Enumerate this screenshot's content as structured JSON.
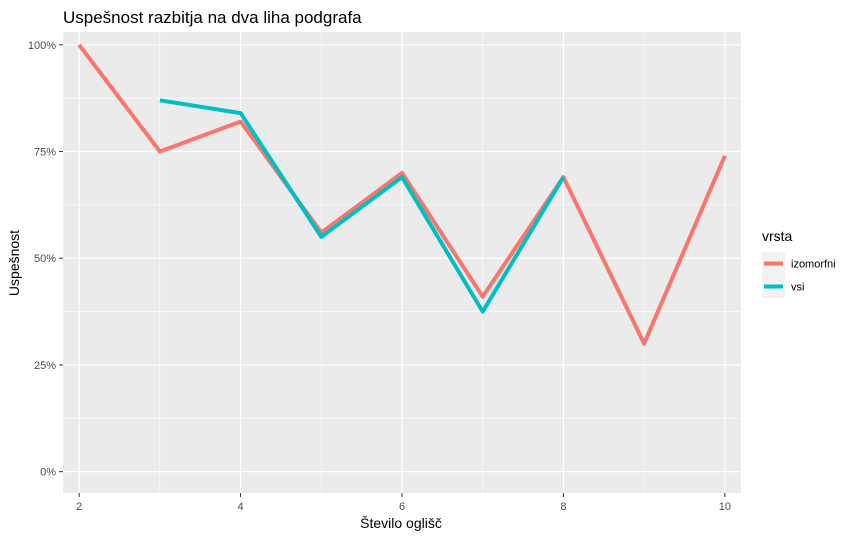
{
  "colors": {
    "panel_background": "#ebebeb",
    "grid_major": "#ffffff",
    "izomorfni": "#f8766d",
    "vsi": "#00bfc4"
  },
  "chart_data": {
    "type": "line",
    "title": "Uspešnost razbitja na dva liha podgrafa",
    "xlabel": "Število oglišč",
    "ylabel": "Uspešnost",
    "xlim": [
      1.8,
      10.2
    ],
    "ylim": [
      -0.05,
      1.03
    ],
    "x_ticks": [
      2,
      4,
      6,
      8,
      10
    ],
    "x_tick_labels": [
      "2",
      "4",
      "6",
      "8",
      "10"
    ],
    "y_ticks": [
      0,
      0.25,
      0.5,
      0.75,
      1.0
    ],
    "y_tick_labels": [
      "0%",
      "25%",
      "50%",
      "75%",
      "100%"
    ],
    "grid": true,
    "legend": {
      "title": "vrsta",
      "position": "right"
    },
    "series": [
      {
        "name": "izomorfni",
        "color": "#f8766d",
        "x": [
          2,
          3,
          4,
          5,
          6,
          7,
          8,
          9,
          10
        ],
        "y": [
          1.0,
          0.75,
          0.82,
          0.56,
          0.7,
          0.41,
          0.69,
          0.3,
          0.74
        ]
      },
      {
        "name": "vsi",
        "color": "#00bfc4",
        "x": [
          3,
          4,
          5,
          6,
          7,
          8
        ],
        "y": [
          0.87,
          0.84,
          0.55,
          0.69,
          0.375,
          0.69
        ]
      }
    ]
  }
}
